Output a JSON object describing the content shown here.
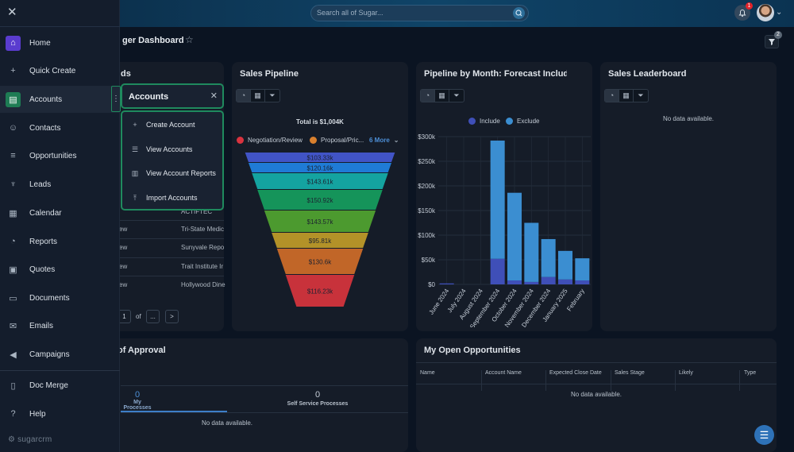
{
  "topbar": {
    "search_placeholder": "Search all of Sugar...",
    "notification_count": "1"
  },
  "dashboard": {
    "title": "ger Dashboard",
    "filter_count": "2"
  },
  "sidebar": {
    "items": [
      {
        "label": "Home",
        "icon": "home-icon"
      },
      {
        "label": "Quick Create",
        "icon": "plus-icon"
      },
      {
        "label": "Accounts",
        "icon": "accounts-icon"
      },
      {
        "label": "Contacts",
        "icon": "contacts-icon"
      },
      {
        "label": "Opportunities",
        "icon": "opportunities-icon"
      },
      {
        "label": "Leads",
        "icon": "leads-icon"
      },
      {
        "label": "Calendar",
        "icon": "calendar-icon"
      },
      {
        "label": "Reports",
        "icon": "reports-icon"
      },
      {
        "label": "Quotes",
        "icon": "quotes-icon"
      },
      {
        "label": "Documents",
        "icon": "documents-icon"
      },
      {
        "label": "Emails",
        "icon": "emails-icon"
      },
      {
        "label": "Campaigns",
        "icon": "campaigns-icon"
      },
      {
        "label": "Doc Merge",
        "icon": "doc-merge-icon"
      },
      {
        "label": "Help",
        "icon": "help-icon"
      }
    ],
    "logo": "sugarcrm"
  },
  "accounts_menu": {
    "title": "Accounts",
    "items": [
      {
        "label": "Create Account",
        "icon": "plus-icon"
      },
      {
        "label": "View Accounts",
        "icon": "list-icon"
      },
      {
        "label": "View Account Reports",
        "icon": "chart-icon"
      },
      {
        "label": "Import Accounts",
        "icon": "upload-icon"
      }
    ]
  },
  "leads_dashlet": {
    "title_partial": "ds",
    "rows": [
      {
        "status": "",
        "name": "ACTIFTEC"
      },
      {
        "status": "ew",
        "name": "Tri-State Medic"
      },
      {
        "status": "ew",
        "name": "Sunyvale Repo"
      },
      {
        "status": "ew",
        "name": "Trait Institute Ir"
      },
      {
        "status": "ew",
        "name": "Hollywood Dine"
      }
    ],
    "pager": {
      "page": "1",
      "of_label": "of",
      "more": "...",
      "next": ">"
    }
  },
  "sales_pipeline": {
    "title": "Sales Pipeline",
    "total": "Total is $1,004K",
    "legend": [
      {
        "label": "Negotiation/Review",
        "color": "#d9333f"
      },
      {
        "label": "Proposal/Pric...",
        "color": "#d9802e"
      }
    ],
    "more_label": "6 More",
    "funnel": [
      {
        "label": "$103.33k",
        "color": "#4154c6"
      },
      {
        "label": "$120.16k",
        "color": "#1f7bd6"
      },
      {
        "label": "$143.61k",
        "color": "#14a3a0"
      },
      {
        "label": "$150.92k",
        "color": "#15945a"
      },
      {
        "label": "$143.57k",
        "color": "#4c9a2f"
      },
      {
        "label": "$95.81k",
        "color": "#b39228"
      },
      {
        "label": "$130.6k",
        "color": "#c16628"
      },
      {
        "label": "$116.23k",
        "color": "#c8323b"
      }
    ]
  },
  "pipeline_by_month": {
    "title": "Pipeline by Month: Forecast Include",
    "legend": [
      {
        "label": "Include",
        "color": "#3f4fb8"
      },
      {
        "label": "Exclude",
        "color": "#3b8ed1"
      }
    ]
  },
  "chart_data": {
    "type": "bar",
    "categories": [
      "June 2024",
      "July 2024",
      "August 2024",
      "September 2024",
      "October 2024",
      "November 2024",
      "December 2024",
      "January 2025",
      "February"
    ],
    "series": [
      {
        "name": "Include",
        "values": [
          2,
          0,
          0,
          52,
          8,
          5,
          15,
          10,
          8
        ]
      },
      {
        "name": "Exclude",
        "values": [
          0,
          0,
          0,
          240,
          178,
          120,
          77,
          58,
          45
        ]
      }
    ],
    "yticks": [
      "$0",
      "$50k",
      "$100k",
      "$150k",
      "$200k",
      "$250k",
      "$300k"
    ],
    "ylim": [
      0,
      300
    ],
    "stacked": true,
    "grid": true,
    "legend_position": "top"
  },
  "sales_leaderboard": {
    "title": "Sales Leaderboard",
    "empty": "No data available."
  },
  "approval": {
    "title_partial": "of Approval",
    "tabs": [
      {
        "count": "0",
        "label": "My Processes"
      },
      {
        "count": "0",
        "label": "Self Service Processes"
      }
    ],
    "empty": "No data available."
  },
  "my_open_opps": {
    "title": "My Open Opportunities",
    "columns": [
      "Name",
      "Account Name",
      "Expected Close Date",
      "Sales Stage",
      "Likely",
      "Type"
    ],
    "empty": "No data available."
  }
}
